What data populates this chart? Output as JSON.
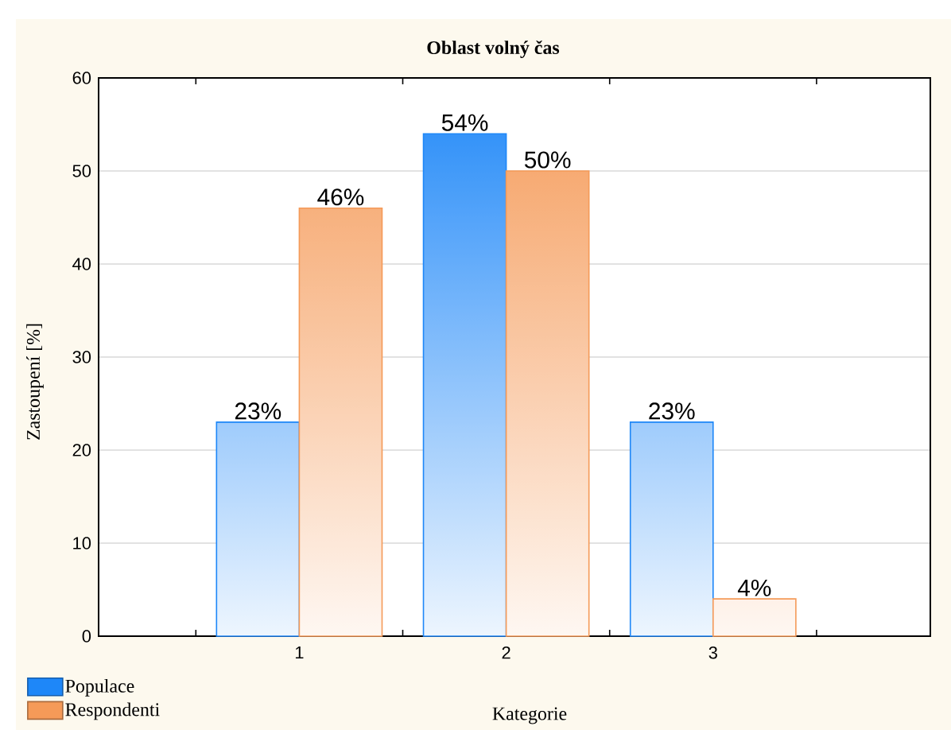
{
  "chart_data": {
    "type": "bar",
    "title": "Oblast volný čas",
    "xlabel": "Kategorie",
    "ylabel": "Zastoupení [%]",
    "categories": [
      "1",
      "2",
      "3"
    ],
    "series": [
      {
        "name": "Populace",
        "color": "#1e87f8",
        "values": [
          23,
          54,
          23
        ],
        "value_labels": [
          "23%",
          "54%",
          "23%"
        ]
      },
      {
        "name": "Respondenti",
        "color": "#f59a58",
        "values": [
          46,
          50,
          4
        ],
        "value_labels": [
          "46%",
          "50%",
          "4%"
        ]
      }
    ],
    "ylim": [
      0,
      60
    ],
    "yticks": [
      0,
      10,
      20,
      30,
      40,
      50,
      60
    ],
    "grid": "y",
    "legend": "bottom left"
  }
}
